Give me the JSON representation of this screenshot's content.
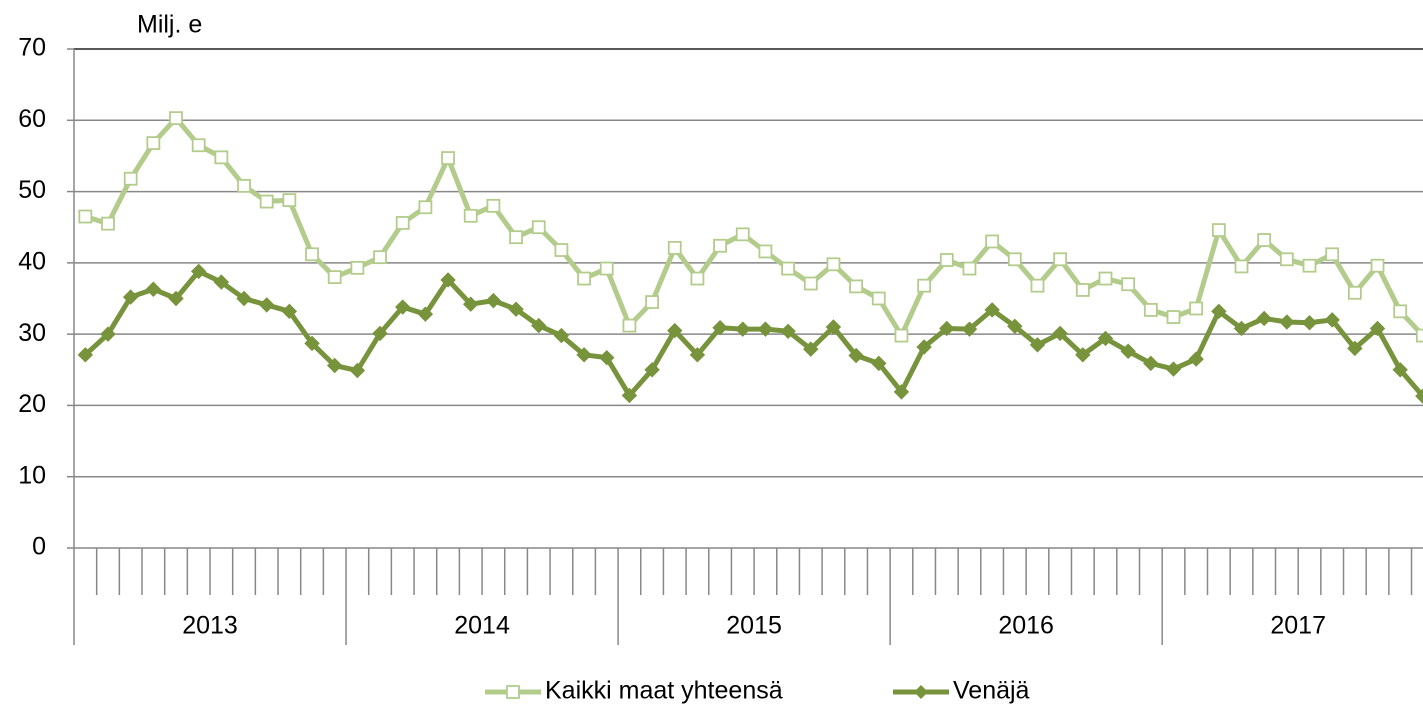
{
  "chart_data": {
    "type": "line",
    "y_axis_label": "Milj. e",
    "categories": [
      null,
      null,
      null,
      null,
      null,
      null,
      null,
      null,
      null,
      null,
      null,
      null,
      null,
      null,
      null,
      null,
      null,
      null,
      null,
      null,
      null,
      null,
      null,
      null,
      null,
      null,
      null,
      null,
      null,
      null,
      null,
      null,
      null,
      null,
      null,
      null,
      null,
      null,
      null,
      null,
      null,
      null,
      null,
      null,
      null,
      null,
      null,
      null,
      null,
      null,
      null,
      null,
      null,
      null,
      null,
      null,
      null,
      null,
      null,
      null
    ],
    "groups": [
      {
        "label": "2013",
        "size": 12
      },
      {
        "label": "2014",
        "size": 12
      },
      {
        "label": "2015",
        "size": 12
      },
      {
        "label": "2016",
        "size": 12
      },
      {
        "label": "2017",
        "size": 12
      }
    ],
    "series": [
      {
        "name": "Kaikki maat yhteensä",
        "color": "#b3cc8c",
        "marker": "square",
        "values": [
          46.5,
          45.5,
          51.8,
          56.8,
          60.3,
          56.5,
          54.8,
          50.8,
          48.6,
          48.8,
          41.2,
          38.0,
          39.3,
          40.8,
          45.6,
          47.8,
          54.7,
          46.6,
          48.0,
          43.6,
          45.0,
          41.8,
          37.8,
          39.2,
          31.2,
          34.5,
          42.1,
          37.8,
          42.4,
          44.0,
          41.6,
          39.2,
          37.1,
          39.8,
          36.7,
          35.0,
          29.8,
          36.8,
          40.4,
          39.2,
          43.0,
          40.5,
          36.8,
          40.5,
          36.2,
          37.8,
          37.0,
          33.4,
          32.4,
          33.6,
          44.6,
          39.5,
          43.2,
          40.5,
          39.6,
          41.2,
          35.8,
          39.6,
          33.2,
          29.8
        ]
      },
      {
        "name": "Venäjä",
        "color": "#77933c",
        "marker": "diamond",
        "values": [
          27.1,
          30.0,
          35.2,
          36.3,
          35.0,
          38.8,
          37.3,
          35.0,
          34.1,
          33.2,
          28.7,
          25.6,
          24.9,
          30.1,
          33.8,
          32.8,
          37.6,
          34.2,
          34.7,
          33.5,
          31.2,
          29.8,
          27.1,
          26.7,
          21.4,
          25.0,
          30.5,
          27.1,
          30.9,
          30.7,
          30.7,
          30.4,
          27.9,
          31.0,
          27.0,
          25.9,
          21.9,
          28.2,
          30.8,
          30.7,
          33.4,
          31.1,
          28.5,
          30.1,
          27.1,
          29.4,
          27.6,
          25.9,
          25.1,
          26.5,
          33.2,
          30.8,
          32.2,
          31.7,
          31.6,
          32.0,
          28.0,
          30.8,
          25.0,
          21.3
        ]
      }
    ],
    "ylim": [
      0,
      70
    ],
    "yticks": [
      0,
      10,
      20,
      30,
      40,
      50,
      60,
      70
    ],
    "grid": true,
    "legend": "bottom"
  }
}
